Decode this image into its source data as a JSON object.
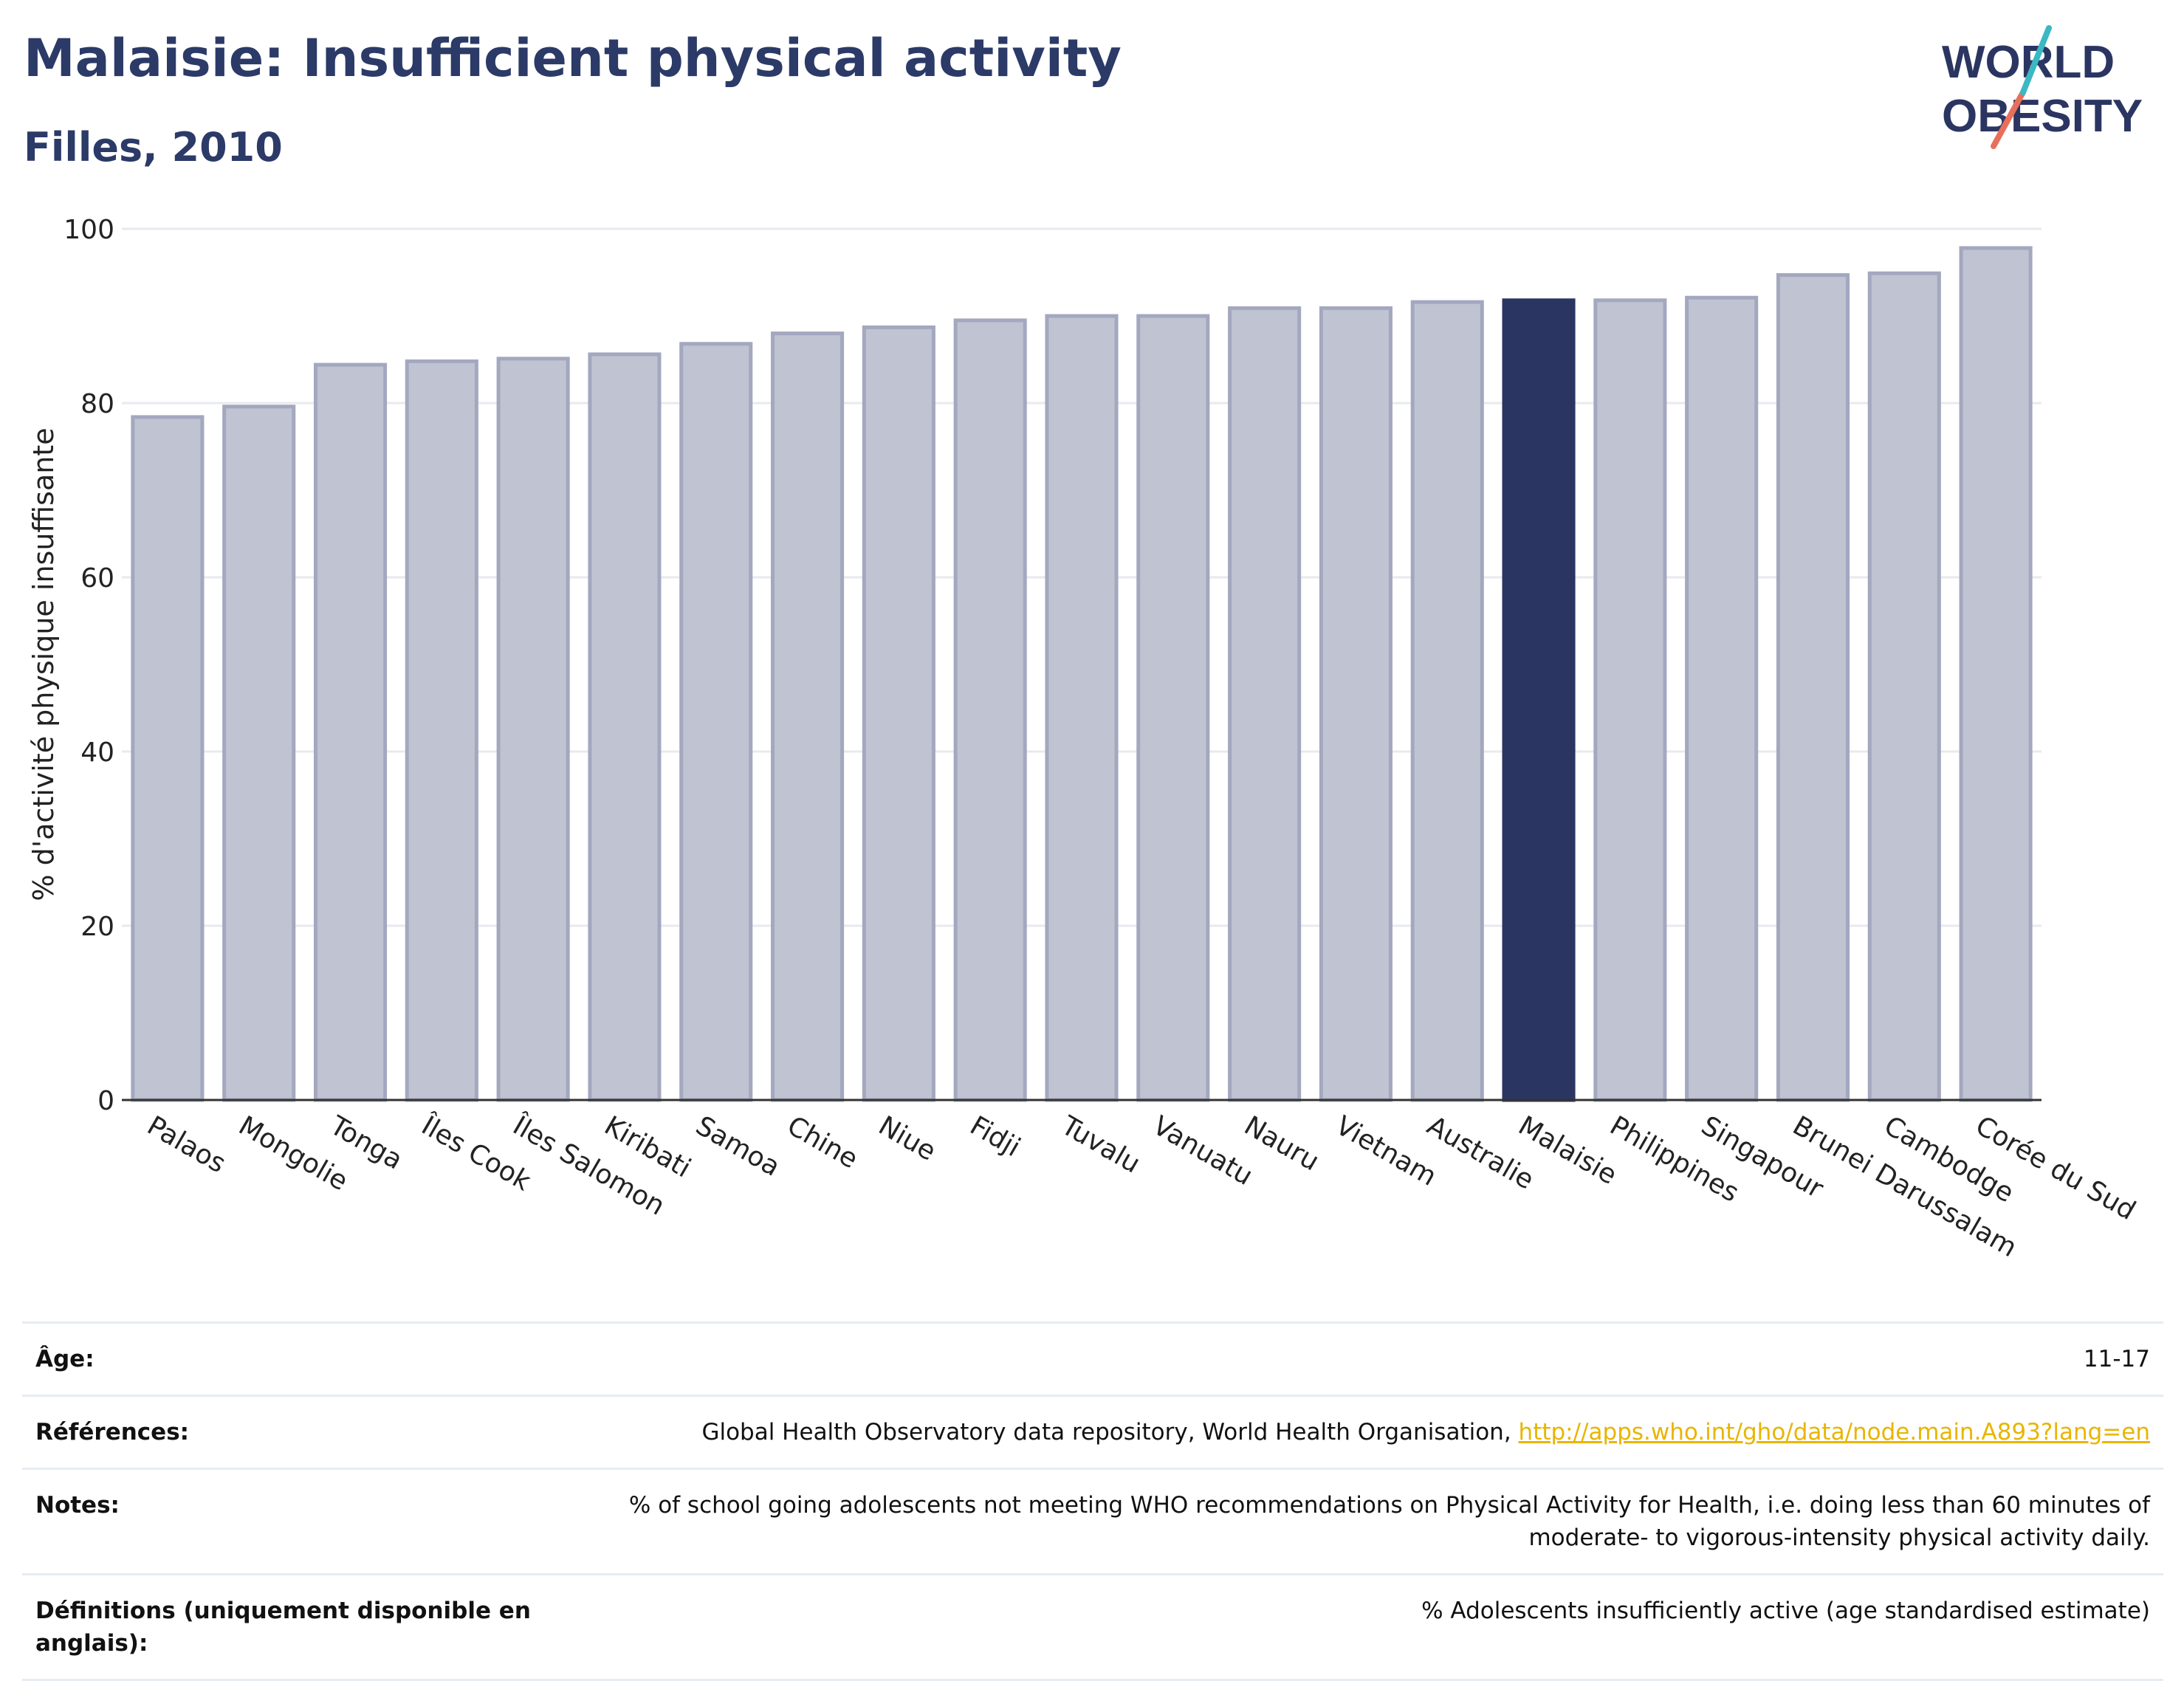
{
  "header": {
    "title": "Malaisie: Insufficient physical activity",
    "subtitle": "Filles, 2010",
    "logo_line1": "WORLD",
    "logo_line2": "OBESITY"
  },
  "chart_data": {
    "type": "bar",
    "ylabel": "% d'activité physique insuffisante",
    "ylim": [
      0,
      100
    ],
    "yticks": [
      0,
      20,
      40,
      60,
      80,
      100
    ],
    "grid": true,
    "categories": [
      "Palaos",
      "Mongolie",
      "Tonga",
      "Îles Cook",
      "Îles Salomon",
      "Kiribati",
      "Samoa",
      "Chine",
      "Niue",
      "Fidji",
      "Tuvalu",
      "Vanuatu",
      "Nauru",
      "Vietnam",
      "Australie",
      "Malaisie",
      "Philippines",
      "Singapour",
      "Brunei Darussalam",
      "Cambodge",
      "Corée du Sud"
    ],
    "values": [
      78.4,
      79.6,
      84.4,
      84.8,
      85.1,
      85.6,
      86.8,
      88.0,
      88.7,
      89.5,
      90.0,
      90.0,
      90.9,
      90.9,
      91.6,
      91.8,
      91.8,
      92.1,
      94.7,
      94.9,
      97.8
    ],
    "highlight": "Malaisie",
    "colors": {
      "bar": "#c0c3d2",
      "bar_border": "#a3a8bf",
      "highlight": "#2b3561",
      "grid": "#e8eaef",
      "axis": "#333333"
    }
  },
  "meta": {
    "rows": [
      {
        "key": "Âge:",
        "value": "11-17"
      },
      {
        "key": "Références:",
        "value": "Global Health Observatory data repository, World Health Organisation, ",
        "link": "http://apps.who.int/gho/data/node.main.A893?lang=en"
      },
      {
        "key": "Notes:",
        "value": "% of school going adolescents not meeting WHO recommendations on Physical Activity for Health, i.e. doing less than 60 minutes of moderate- to vigorous-intensity physical activity daily."
      },
      {
        "key": "Définitions (uniquement disponible en anglais):",
        "value": "% Adolescents insufficiently active (age standardised estimate)"
      }
    ]
  }
}
